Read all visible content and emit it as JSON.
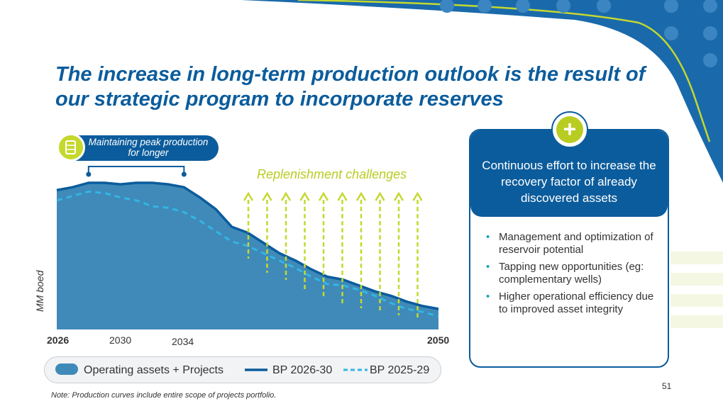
{
  "slide": {
    "title": "The increase in long-term production outlook is the result of our strategic program to incorporate reserves",
    "peak_label": "Maintaining peak production for longer",
    "replenishment_label": "Replenishment challenges",
    "note": "Note: Production curves include entire scope of  projects portfolio.",
    "page_number": "51",
    "colors": {
      "primary": "#0b5c9c",
      "accent": "#b9cc22",
      "area": "#3f8ab8",
      "dashed": "#33b5e5"
    }
  },
  "card": {
    "plus_icon": "+",
    "title": "Continuous effort to increase the recovery factor of already discovered assets",
    "bullets": [
      "Management and optimization of reservoir potential",
      "Tapping new opportunities (eg: complementary wells)",
      "Higher operational efficiency due to improved asset integrity"
    ]
  },
  "chart_data": {
    "type": "area",
    "ylabel": "MM boed",
    "xlim": [
      2026,
      2050
    ],
    "ylim": [
      0,
      100
    ],
    "x_ticks": [
      "2026",
      "2030",
      "2034",
      "2050"
    ],
    "x": [
      2026,
      2027,
      2028,
      2029,
      2030,
      2031,
      2032,
      2033,
      2034,
      2035,
      2036,
      2037,
      2038,
      2039,
      2040,
      2041,
      2042,
      2043,
      2044,
      2045,
      2046,
      2047,
      2048,
      2049,
      2050
    ],
    "series": [
      {
        "name": "Operating assets + Projects",
        "style": "area",
        "values": [
          95,
          97,
          100,
          100,
          99,
          100,
          100,
          99,
          97,
          90,
          82,
          70,
          66,
          59,
          52,
          47,
          41,
          36,
          34,
          30,
          26,
          23,
          19,
          16,
          14
        ]
      },
      {
        "name": "BP 2026-30",
        "style": "solid-line",
        "values": [
          95,
          97,
          100,
          100,
          99,
          100,
          100,
          99,
          97,
          90,
          82,
          70,
          66,
          59,
          52,
          47,
          41,
          36,
          34,
          30,
          26,
          23,
          19,
          16,
          14
        ]
      },
      {
        "name": "BP 2025-29",
        "style": "dashed-line",
        "values": [
          88,
          91,
          94,
          93,
          90,
          88,
          84,
          83,
          80,
          74,
          67,
          60,
          57,
          52,
          47,
          42,
          36,
          31,
          30,
          27,
          23,
          18,
          14,
          12,
          9
        ]
      }
    ],
    "legend": [
      "Operating assets + Projects",
      "BP 2026-30",
      "BP 2025-29"
    ],
    "peak_bracket": [
      2028,
      2034
    ],
    "replenishment_arrows_count": 10
  }
}
